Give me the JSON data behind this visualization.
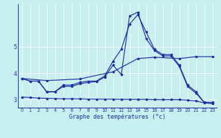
{
  "title": "Graphe des températures (°c)",
  "bg_color": "#c8eef0",
  "line_color": "#1a2fa0",
  "xlim": [
    -0.5,
    23.5
  ],
  "ylim": [
    2.7,
    6.6
  ],
  "yticks": [
    3,
    4,
    5
  ],
  "ytick_labels": [
    "3",
    "4",
    "5"
  ],
  "xticks": [
    0,
    1,
    2,
    3,
    4,
    5,
    6,
    7,
    8,
    9,
    10,
    11,
    12,
    13,
    14,
    15,
    16,
    17,
    18,
    19,
    20,
    21,
    22,
    23
  ],
  "series": [
    {
      "x": [
        0,
        1,
        2,
        3,
        4,
        5,
        6,
        7,
        8,
        9,
        10,
        11,
        12,
        13,
        14,
        15,
        16,
        17,
        18,
        19,
        20,
        21,
        22,
        23
      ],
      "y": [
        3.8,
        3.7,
        3.7,
        3.3,
        3.3,
        3.55,
        3.55,
        3.65,
        3.7,
        3.7,
        3.9,
        4.45,
        4.9,
        5.85,
        6.2,
        5.55,
        4.9,
        4.7,
        4.7,
        4.3,
        3.55,
        3.3,
        2.9,
        2.9
      ]
    },
    {
      "x": [
        0,
        1,
        2,
        3,
        4,
        5,
        6,
        7,
        8,
        9,
        10,
        11,
        12,
        13,
        14,
        15,
        16,
        17,
        18,
        19,
        20,
        21,
        22,
        23
      ],
      "y": [
        3.8,
        3.7,
        3.7,
        3.3,
        3.3,
        3.5,
        3.5,
        3.6,
        3.65,
        3.68,
        3.85,
        4.3,
        3.95,
        6.15,
        6.3,
        5.3,
        4.85,
        4.65,
        4.65,
        4.25,
        3.5,
        3.25,
        2.9,
        2.88
      ]
    },
    {
      "x": [
        0,
        3,
        7,
        11,
        14,
        16,
        19,
        21,
        23
      ],
      "y": [
        3.8,
        3.72,
        3.78,
        4.05,
        4.55,
        4.6,
        4.55,
        4.62,
        4.62
      ]
    },
    {
      "x": [
        0,
        1,
        2,
        3,
        4,
        5,
        6,
        7,
        8,
        9,
        10,
        11,
        12,
        13,
        14,
        15,
        16,
        17,
        18,
        19,
        20,
        21,
        22,
        23
      ],
      "y": [
        3.1,
        3.08,
        3.06,
        3.05,
        3.04,
        3.03,
        3.03,
        3.03,
        3.02,
        3.02,
        3.02,
        3.02,
        3.01,
        3.01,
        3.01,
        3.01,
        3.0,
        3.0,
        3.0,
        3.0,
        2.98,
        2.95,
        2.88,
        2.85
      ]
    }
  ]
}
